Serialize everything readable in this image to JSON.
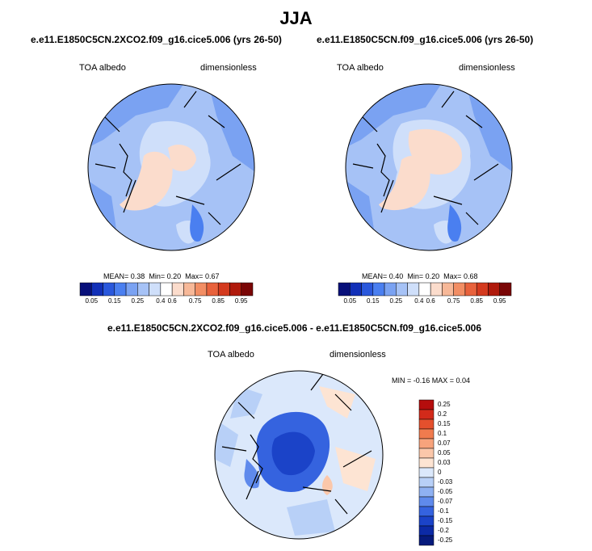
{
  "figure": {
    "title": "JJA",
    "panels": [
      {
        "case_name": "e.e11.E1850C5CN.2XCO2.f09_g16.cice5.006 (yrs 26-50)",
        "variable": "TOA albedo",
        "units": "dimensionless",
        "mean_label": "MEAN=",
        "mean_value": "0.38",
        "min_label": "Min=",
        "min_value": "0.20",
        "max_label": "Max=",
        "max_value": "0.67"
      },
      {
        "case_name": "e.e11.E1850C5CN.f09_g16.cice5.006 (yrs 26-50)",
        "variable": "TOA albedo",
        "units": "dimensionless",
        "mean_label": "MEAN=",
        "mean_value": "0.40",
        "min_label": "Min=",
        "min_value": "0.20",
        "max_label": "Max=",
        "max_value": "0.68"
      }
    ],
    "diff_panel": {
      "case_name": "e.e11.E1850C5CN.2XCO2.f09_g16.cice5.006 - e.e11.E1850C5CN.f09_g16.cice5.006",
      "variable": "TOA albedo",
      "units": "dimensionless",
      "minmax_text": "MIN =  -0.16 MAX =   0.04"
    }
  },
  "colorbar_top": {
    "colors": [
      "#08107a",
      "#1230b8",
      "#2a58dc",
      "#4a7ff0",
      "#7aa2f2",
      "#a6c2f6",
      "#cfdffa",
      "#ffffff",
      "#fbdccc",
      "#f7b898",
      "#f28e64",
      "#e8623c",
      "#d43a1e",
      "#b01a0c",
      "#7a0606"
    ],
    "tick_labels": [
      "0.05",
      "0.15",
      "0.25",
      "0.4",
      "0.6",
      "0.75",
      "0.85",
      "0.95"
    ]
  },
  "colorbar_diff": {
    "colors_top_to_bottom": [
      "#b50d0d",
      "#d22a1a",
      "#e4502d",
      "#f07b4e",
      "#f7a37c",
      "#fbc7aa",
      "#fde4d3",
      "#dbe8fb",
      "#b8d0f7",
      "#8fb1f2",
      "#5f8aec",
      "#3563df",
      "#1b43c8",
      "#0c2aa6",
      "#061a7c"
    ],
    "tick_labels_top_to_bottom": [
      "0.25",
      "0.2",
      "0.15",
      "0.1",
      "0.07",
      "0.05",
      "0.03",
      "0",
      "-0.03",
      "-0.05",
      "-0.07",
      "-0.1",
      "-0.15",
      "-0.2",
      "-0.25"
    ]
  }
}
